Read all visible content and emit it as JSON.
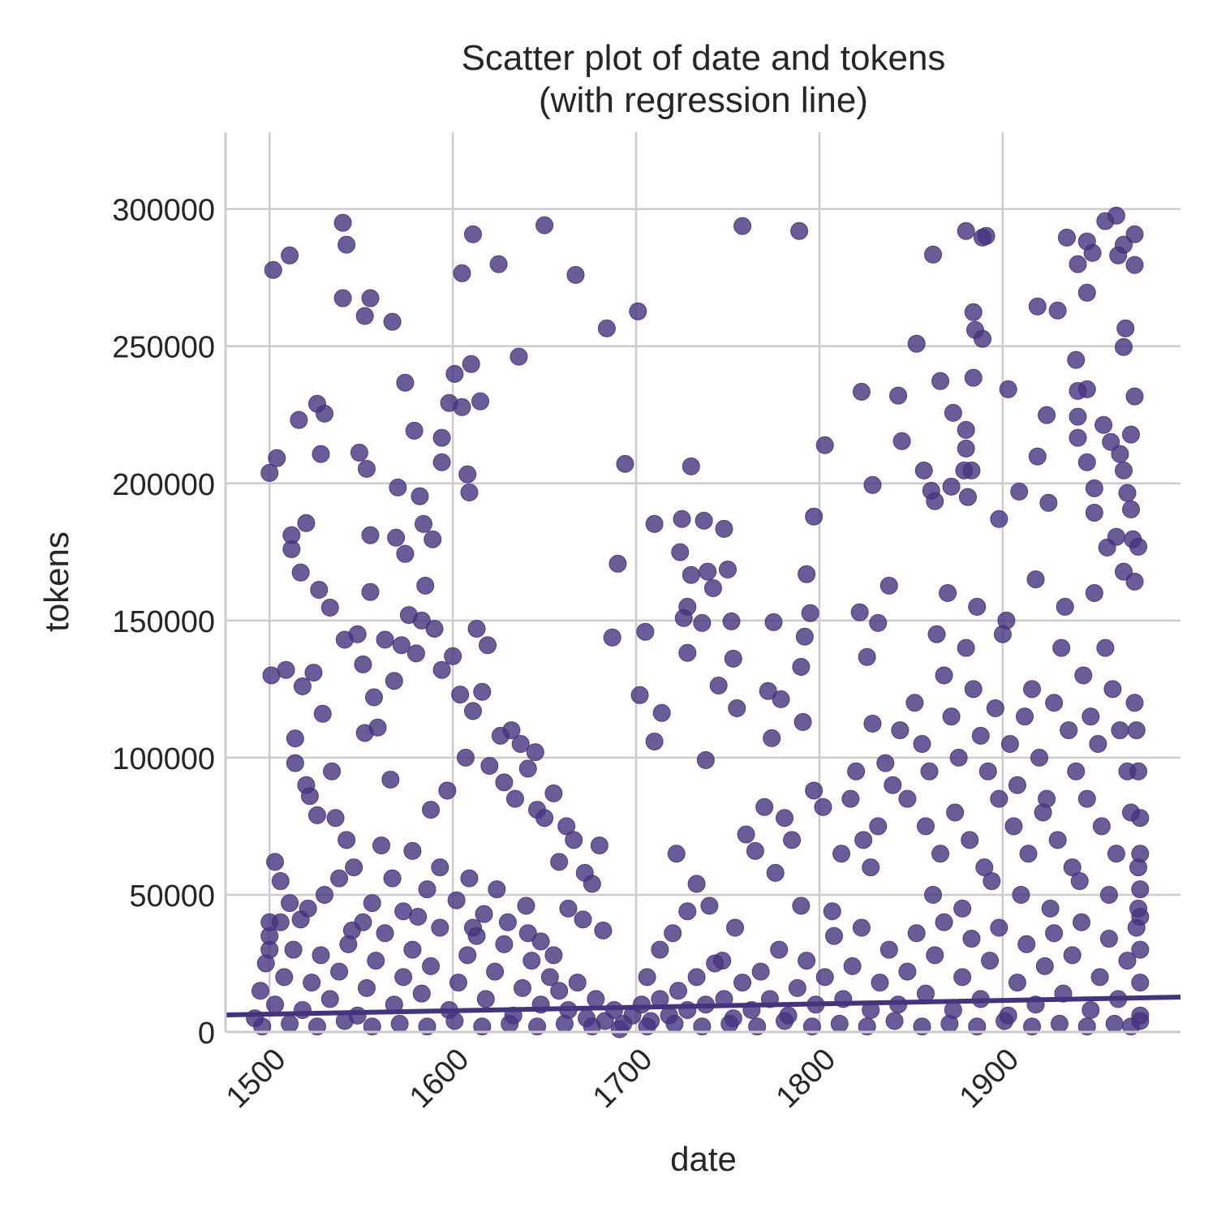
{
  "chart_data": {
    "type": "scatter",
    "title": "Scatter plot of date and tokens",
    "subtitle": "(with regression line)",
    "x_label": "date",
    "y_label": "tokens",
    "color": "#46337e",
    "grid": true,
    "xlim": [
      1476,
      1997
    ],
    "ylim": [
      0,
      328000
    ],
    "xticks": [
      1500,
      1600,
      1700,
      1800,
      1900
    ],
    "yticks": [
      0,
      50000,
      100000,
      150000,
      200000,
      250000,
      300000
    ],
    "regression": {
      "x": [
        1476,
        1997
      ],
      "values": [
        6200,
        12700
      ]
    },
    "x": [
      1502,
      1511,
      1500,
      1504,
      1516,
      1528,
      1526,
      1530,
      1540,
      1542,
      1540,
      1555,
      1552,
      1567,
      1549,
      1553,
      1574,
      1570,
      1579,
      1520,
      1512,
      1512,
      1517,
      1527,
      1533,
      1555,
      1555,
      1569,
      1574,
      1582,
      1584,
      1589,
      1585,
      1594,
      1594,
      1598,
      1601,
      1605,
      1605,
      1611,
      1610,
      1615,
      1625,
      1636,
      1650,
      1667,
      1609,
      1608,
      1684,
      1701,
      1694,
      1690,
      1687,
      1705,
      1710,
      1702,
      1714,
      1710,
      1730,
      1725,
      1737,
      1748,
      1724,
      1730,
      1750,
      1739,
      1742,
      1728,
      1726,
      1736,
      1752,
      1728,
      1745,
      1753,
      1755,
      1738,
      1758,
      1789,
      1775,
      1772,
      1779,
      1774,
      1803,
      1797,
      1793,
      1795,
      1792,
      1790,
      1791,
      1823,
      1829,
      1822,
      1832,
      1826,
      1829,
      1843,
      1845,
      1838,
      1853,
      1862,
      1866,
      1873,
      1857,
      1861,
      1863,
      1872,
      1879,
      1880,
      1889,
      1891,
      1884,
      1885,
      1889,
      1884,
      1880,
      1880,
      1883,
      1881,
      1903,
      1909,
      1898,
      1919,
      1930,
      1924,
      1919,
      1925,
      1935,
      1941,
      1946,
      1949,
      1946,
      1940,
      1941,
      1946,
      1941,
      1941,
      1946,
      1950,
      1950,
      1956,
      1962,
      1966,
      1963,
      1972,
      1972,
      1967,
      1966,
      1955,
      1959,
      1964,
      1966,
      1970,
      1972,
      1968,
      1970,
      1957,
      1962,
      1971,
      1974,
      1972,
      1966,
      1501,
      1509,
      1514,
      1514,
      1520,
      1522,
      1526,
      1536,
      1542,
      1548,
      1541,
      1551,
      1557,
      1559,
      1552,
      1563,
      1572,
      1568,
      1576,
      1580,
      1583,
      1590,
      1594,
      1600,
      1604,
      1611,
      1613,
      1616,
      1619,
      1626,
      1632,
      1637,
      1641,
      1645,
      1650,
      1655,
      1662,
      1666,
      1672,
      1676,
      1680,
      1682,
      1671,
      1663,
      1658,
      1646,
      1634,
      1628,
      1620,
      1607,
      1597,
      1588,
      1578,
      1566,
      1561,
      1546,
      1534,
      1529,
      1524,
      1518,
      1503,
      1506,
      1511,
      1517,
      1530,
      1538,
      1545,
      1556,
      1567,
      1573,
      1586,
      1593,
      1602,
      1609,
      1617,
      1624,
      1630,
      1640,
      1648,
      1655,
      1706,
      1713,
      1720,
      1728,
      1733,
      1740,
      1747,
      1754,
      1760,
      1765,
      1770,
      1776,
      1781,
      1785,
      1790,
      1797,
      1802,
      1807,
      1812,
      1722,
      1817,
      1820,
      1824,
      1828,
      1832,
      1836,
      1840,
      1844,
      1848,
      1852,
      1856,
      1860,
      1864,
      1868,
      1872,
      1876,
      1880,
      1884,
      1888,
      1892,
      1896,
      1900,
      1904,
      1908,
      1912,
      1916,
      1920,
      1924,
      1928,
      1932,
      1936,
      1940,
      1944,
      1948,
      1952,
      1956,
      1960,
      1964,
      1968,
      1972,
      1858,
      1866,
      1874,
      1882,
      1890,
      1898,
      1906,
      1914,
      1922,
      1930,
      1938,
      1946,
      1954,
      1962,
      1970,
      1974,
      1862,
      1878,
      1894,
      1910,
      1926,
      1942,
      1958,
      1974,
      1870,
      1886,
      1902,
      1918,
      1934,
      1950,
      1492,
      1495,
      1498,
      1503,
      1508,
      1513,
      1518,
      1523,
      1528,
      1533,
      1538,
      1543,
      1548,
      1553,
      1558,
      1563,
      1568,
      1573,
      1578,
      1583,
      1588,
      1593,
      1598,
      1603,
      1608,
      1613,
      1618,
      1623,
      1628,
      1633,
      1638,
      1643,
      1648,
      1653,
      1658,
      1663,
      1668,
      1673,
      1678,
      1683,
      1688,
      1693,
      1698,
      1703,
      1708,
      1713,
      1718,
      1723,
      1728,
      1733,
      1738,
      1743,
      1748,
      1753,
      1758,
      1763,
      1768,
      1773,
      1778,
      1783,
      1788,
      1793,
      1798,
      1803,
      1808,
      1813,
      1818,
      1823,
      1828,
      1833,
      1838,
      1843,
      1848,
      1853,
      1858,
      1863,
      1868,
      1873,
      1878,
      1883,
      1888,
      1893,
      1898,
      1903,
      1908,
      1913,
      1918,
      1923,
      1928,
      1933,
      1938,
      1943,
      1948,
      1953,
      1958,
      1963,
      1968,
      1973,
      1975,
      1975,
      1975,
      1975,
      1975,
      1975,
      1975,
      1974,
      1973,
      1500,
      1500,
      1500,
      1496,
      1511,
      1526,
      1541,
      1556,
      1571,
      1586,
      1601,
      1616,
      1631,
      1646,
      1661,
      1676,
      1691,
      1706,
      1721,
      1736,
      1751,
      1766,
      1781,
      1796,
      1811,
      1826,
      1841,
      1856,
      1871,
      1886,
      1901,
      1916,
      1931,
      1946,
      1961,
      1970,
      1975,
      1506,
      1521,
      1551,
      1581,
      1611,
      1641
    ],
    "values": [
      277800,
      283100,
      203800,
      209200,
      223100,
      210700,
      229000,
      225400,
      295000,
      287000,
      267500,
      267500,
      261000,
      258900,
      211200,
      205300,
      236700,
      198500,
      219200,
      185500,
      181100,
      176000,
      167500,
      161200,
      154700,
      181100,
      160400,
      180200,
      174300,
      195300,
      185200,
      179600,
      162700,
      216600,
      207700,
      229300,
      239900,
      227800,
      276600,
      290800,
      243500,
      229900,
      279900,
      246200,
      294100,
      276000,
      196700,
      203300,
      256500,
      262700,
      207100,
      170700,
      143800,
      145900,
      185200,
      122800,
      116300,
      105900,
      206200,
      187000,
      186400,
      183400,
      174900,
      166600,
      168600,
      167800,
      161800,
      155000,
      150900,
      149100,
      149700,
      138200,
      126300,
      136100,
      118000,
      99100,
      293800,
      292000,
      149400,
      124300,
      121300,
      107100,
      213900,
      187900,
      166900,
      152700,
      144100,
      133100,
      113000,
      233400,
      199400,
      153000,
      149100,
      136700,
      112400,
      232000,
      215400,
      162700,
      250900,
      283400,
      237300,
      225700,
      204700,
      197300,
      193500,
      198800,
      204700,
      292000,
      289600,
      290200,
      262400,
      255900,
      252700,
      238500,
      219500,
      212700,
      204700,
      195000,
      234300,
      197000,
      187000,
      264500,
      263000,
      224900,
      209800,
      192900,
      289600,
      279900,
      288200,
      284000,
      269500,
      245000,
      233700,
      234300,
      224300,
      216600,
      207700,
      198200,
      189300,
      295600,
      297600,
      287000,
      283100,
      290800,
      279600,
      256500,
      249700,
      221300,
      215100,
      210700,
      204700,
      217800,
      231700,
      196500,
      190500,
      176600,
      180500,
      179600,
      176900,
      164200,
      167800,
      130000,
      132000,
      107000,
      98000,
      90000,
      86000,
      79000,
      78000,
      70000,
      145000,
      143000,
      134000,
      122000,
      111000,
      109000,
      143000,
      141000,
      128000,
      152000,
      138000,
      150000,
      147000,
      132000,
      137000,
      123000,
      117000,
      147000,
      124000,
      141000,
      108000,
      110000,
      105000,
      96000,
      102000,
      78000,
      87000,
      75000,
      70000,
      58000,
      54000,
      68000,
      37000,
      41000,
      45000,
      62000,
      81000,
      85000,
      91000,
      97000,
      100000,
      88000,
      81000,
      66000,
      92000,
      68000,
      60000,
      95000,
      116000,
      131000,
      126000,
      62000,
      55000,
      47000,
      41000,
      50000,
      56000,
      37000,
      47000,
      56000,
      44000,
      52000,
      60000,
      48000,
      56000,
      43000,
      52000,
      40000,
      46000,
      33000,
      28000,
      20000,
      30000,
      36000,
      44000,
      54000,
      46000,
      26000,
      38000,
      72000,
      66000,
      82000,
      58000,
      78000,
      70000,
      46000,
      88000,
      82000,
      44000,
      65000,
      65000,
      85000,
      95000,
      70000,
      60000,
      75000,
      98000,
      90000,
      110000,
      85000,
      120000,
      105000,
      95000,
      145000,
      130000,
      115000,
      100000,
      140000,
      125000,
      108000,
      95000,
      118000,
      145000,
      105000,
      90000,
      115000,
      125000,
      100000,
      85000,
      120000,
      140000,
      110000,
      95000,
      130000,
      115000,
      105000,
      140000,
      125000,
      110000,
      95000,
      120000,
      75000,
      65000,
      80000,
      70000,
      60000,
      85000,
      75000,
      65000,
      80000,
      70000,
      60000,
      85000,
      75000,
      65000,
      80000,
      60000,
      50000,
      45000,
      55000,
      50000,
      45000,
      55000,
      50000,
      45000,
      160000,
      155000,
      150000,
      165000,
      155000,
      160000,
      5000,
      15000,
      25000,
      10000,
      20000,
      30000,
      8000,
      18000,
      28000,
      12000,
      22000,
      32000,
      6000,
      16000,
      26000,
      36000,
      10000,
      20000,
      30000,
      14000,
      24000,
      38000,
      8000,
      18000,
      28000,
      35000,
      12000,
      22000,
      32000,
      6000,
      16000,
      26000,
      10000,
      20000,
      15000,
      8000,
      18000,
      5000,
      12000,
      4000,
      8000,
      3000,
      6000,
      10000,
      4000,
      12000,
      6000,
      15000,
      8000,
      20000,
      10000,
      25000,
      12000,
      5000,
      18000,
      8000,
      22000,
      12000,
      30000,
      6000,
      16000,
      26000,
      10000,
      20000,
      35000,
      12000,
      24000,
      38000,
      8000,
      18000,
      30000,
      10000,
      22000,
      36000,
      14000,
      28000,
      40000,
      8000,
      20000,
      34000,
      12000,
      26000,
      38000,
      6000,
      18000,
      32000,
      10000,
      24000,
      36000,
      14000,
      28000,
      40000,
      8000,
      20000,
      34000,
      12000,
      26000,
      38000,
      6000,
      18000,
      30000,
      42000,
      52000,
      65000,
      78000,
      95000,
      110000,
      35000,
      40000,
      30000,
      2000,
      3000,
      2000,
      4000,
      2000,
      3000,
      2000,
      4000,
      2000,
      3000,
      2000,
      3000,
      2000,
      1000,
      2000,
      3000,
      2000,
      3000,
      2000,
      4000,
      2000,
      3000,
      2000,
      4000,
      2000,
      3000,
      2000,
      4000,
      2000,
      3000,
      2000,
      3000,
      2000,
      4000,
      40000,
      45000,
      40000,
      42000,
      38000,
      36000
    ]
  }
}
